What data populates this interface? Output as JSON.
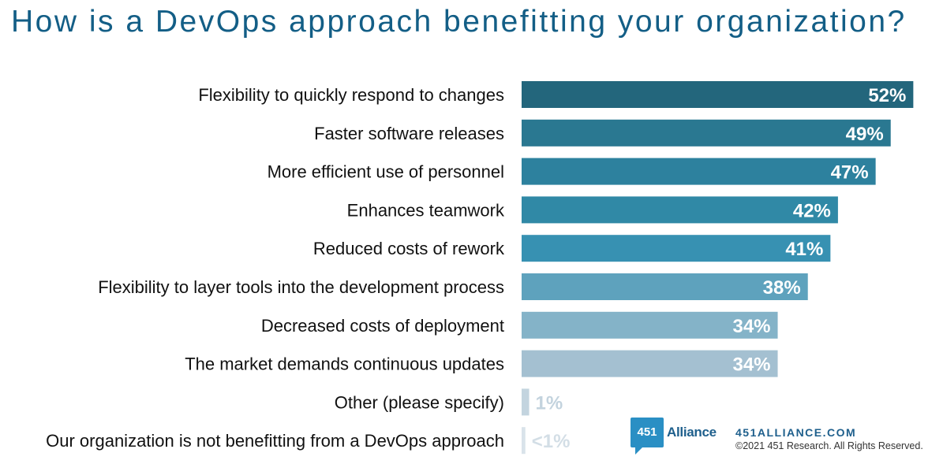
{
  "chart_data": {
    "type": "bar",
    "orientation": "horizontal",
    "title": "How is a DevOps approach benefitting your organization?",
    "categories": [
      "Flexibility to quickly respond to changes",
      "Faster software releases",
      "More efficient use of personnel",
      "Enhances teamwork",
      "Reduced costs of rework",
      "Flexibility to layer tools into the development process",
      "Decreased costs of deployment",
      "The market demands continuous updates",
      "Other (please specify)",
      "Our organization is not benefitting from a DevOps approach"
    ],
    "values": [
      52,
      49,
      47,
      42,
      41,
      38,
      34,
      34,
      1,
      0.5
    ],
    "value_labels": [
      "52%",
      "49%",
      "47%",
      "42%",
      "41%",
      "38%",
      "34%",
      "34%",
      "1%",
      "<1%"
    ],
    "colors": [
      "#23667c",
      "#2a7891",
      "#2d819e",
      "#3089a6",
      "#3791b2",
      "#5ea2bd",
      "#84b3c8",
      "#a4c0d1",
      "#c3d4df",
      "#d9e3ea"
    ],
    "value_label_colors": [
      "#ffffff",
      "#ffffff",
      "#ffffff",
      "#ffffff",
      "#ffffff",
      "#ffffff",
      "#ffffff",
      "#ffffff",
      "#c3d3de",
      "#d3dee6"
    ],
    "xlim": [
      0,
      55
    ],
    "grid": false,
    "legend": "none",
    "unit": "%"
  },
  "footer": {
    "logo_number": "451",
    "logo_word": "Alliance",
    "website": "451ALLIANCE.COM",
    "copyright": "©2021 451 Research. All Rights Reserved."
  }
}
